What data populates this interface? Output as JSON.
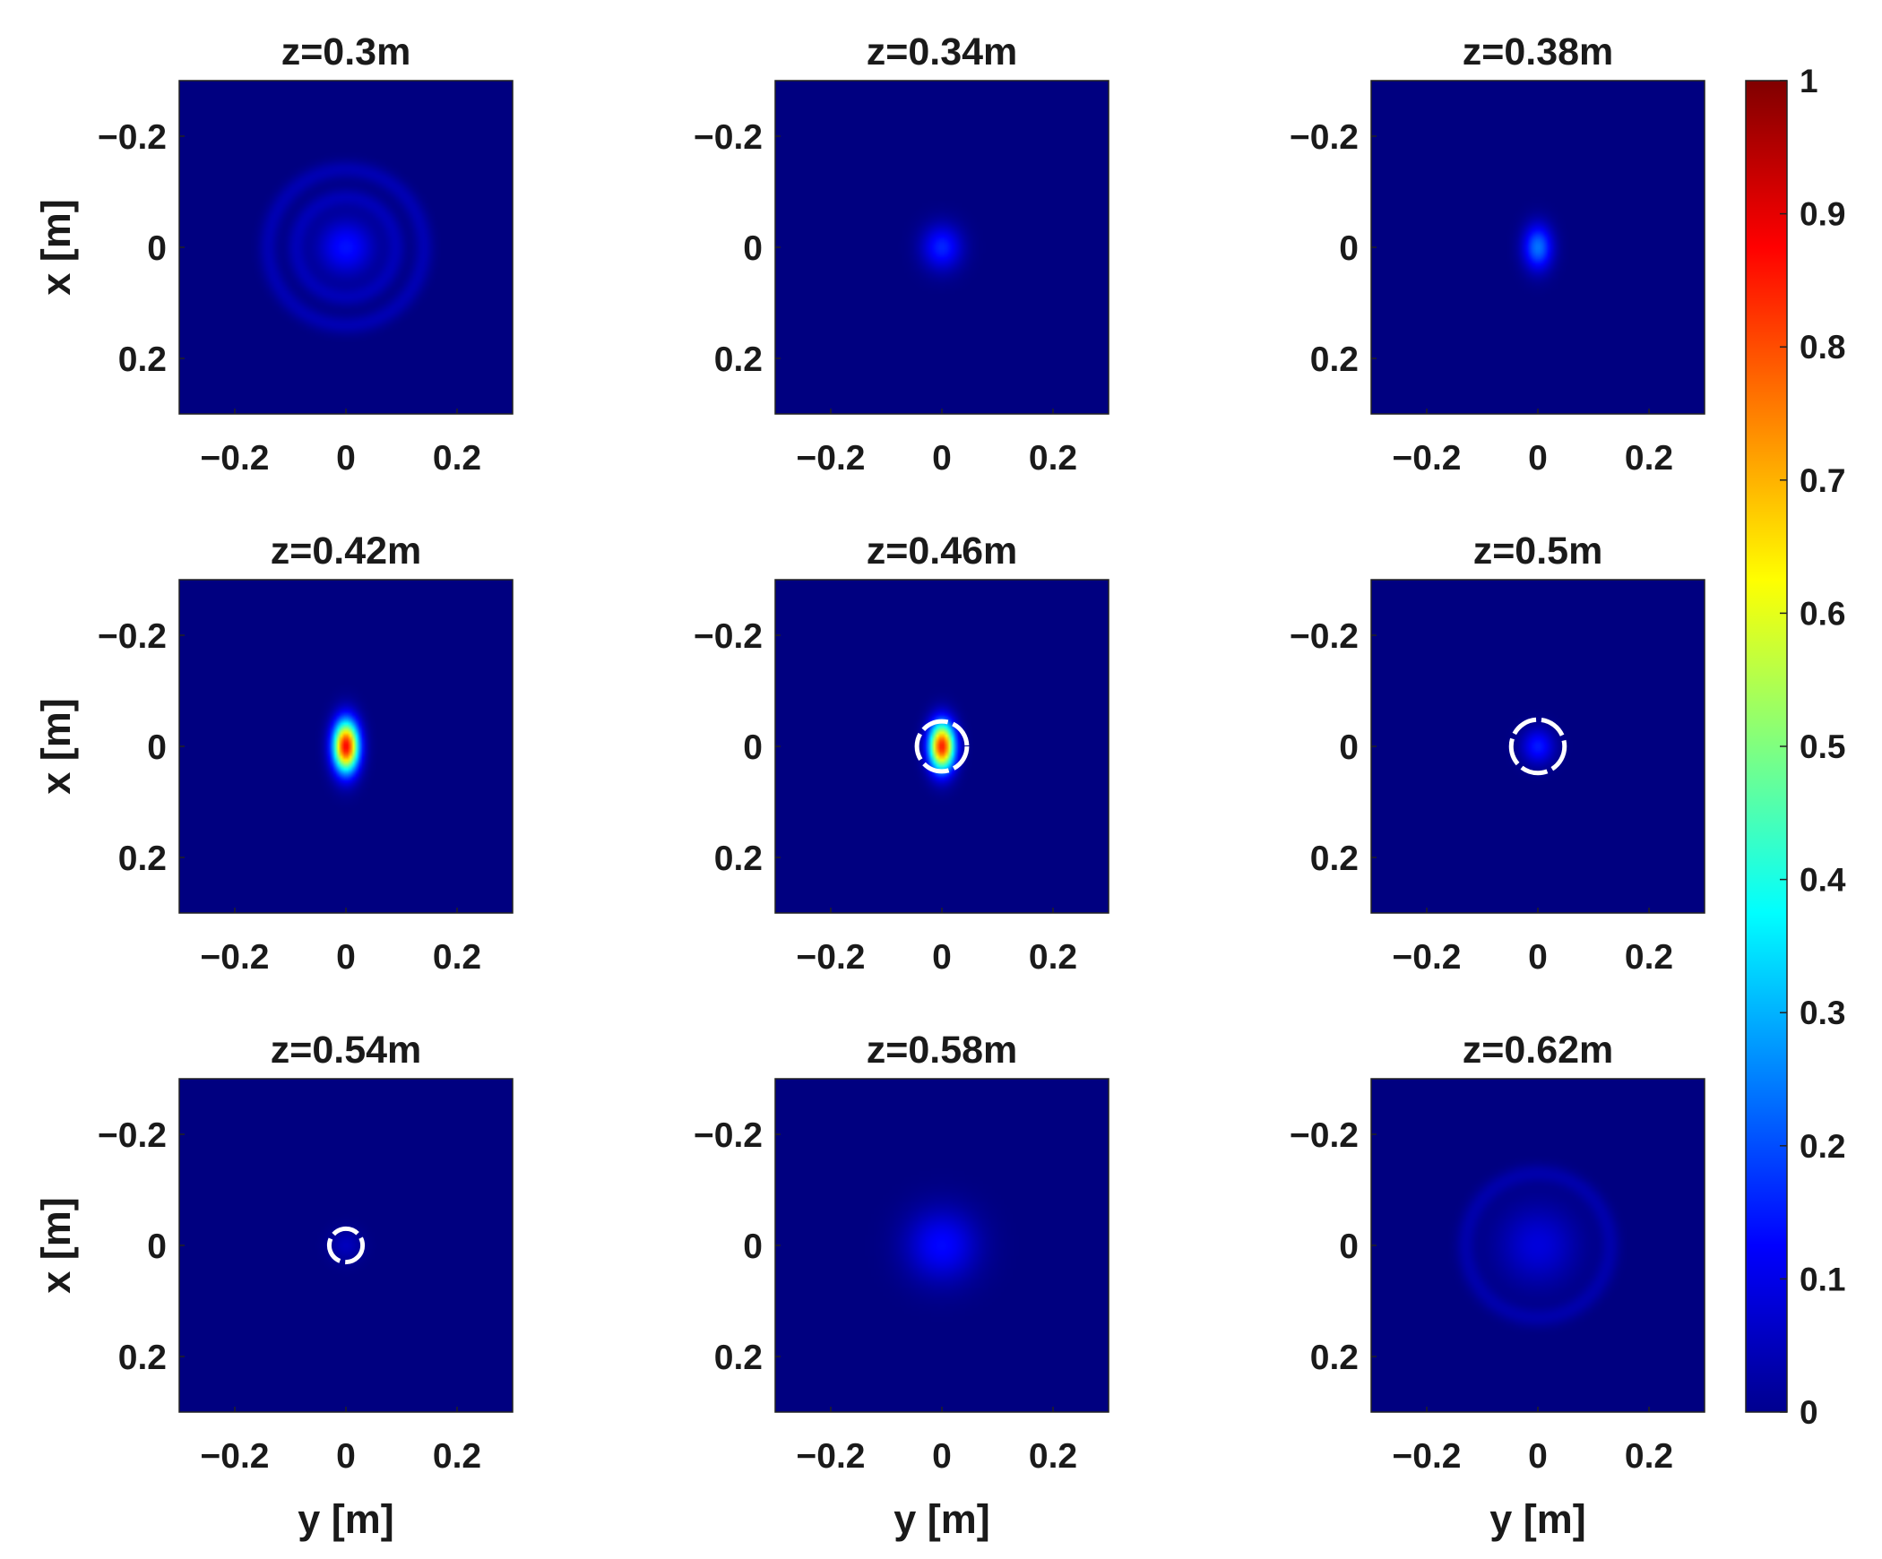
{
  "chart_data": {
    "type": "heatmap",
    "layout": {
      "rows": 3,
      "cols": 3
    },
    "xlabel": "y [m]",
    "ylabel": "x [m]",
    "x_range": [
      -0.3,
      0.3
    ],
    "y_range": [
      -0.3,
      0.3
    ],
    "y_reversed": true,
    "x_ticks": [
      -0.2,
      0,
      0.2
    ],
    "y_ticks": [
      -0.2,
      0,
      0.2
    ],
    "x_tick_labels": [
      "−0.2",
      "0",
      "0.2"
    ],
    "y_tick_labels": [
      "−0.2",
      "0",
      "0.2"
    ],
    "colormap": "jet",
    "color_range": [
      0,
      1
    ],
    "colorbar": {
      "ticks": [
        0,
        0.1,
        0.2,
        0.3,
        0.4,
        0.5,
        0.6,
        0.7,
        0.8,
        0.9,
        1
      ],
      "labels": [
        "0",
        "0.1",
        "0.2",
        "0.3",
        "0.4",
        "0.5",
        "0.6",
        "0.7",
        "0.8",
        "0.9",
        "1"
      ]
    },
    "panels": [
      {
        "title": "z=0.3m",
        "peak": 0.14,
        "spot_width_y": 0.035,
        "spot_width_x": 0.035,
        "rings": [
          0.09,
          0.14
        ],
        "ring_level": 0.05,
        "marker_radius": null
      },
      {
        "title": "z=0.34m",
        "peak": 0.16,
        "spot_width_y": 0.025,
        "spot_width_x": 0.028,
        "rings": [],
        "ring_level": 0,
        "marker_radius": null
      },
      {
        "title": "z=0.38m",
        "peak": 0.24,
        "spot_width_y": 0.018,
        "spot_width_x": 0.028,
        "rings": [],
        "ring_level": 0,
        "marker_radius": null
      },
      {
        "title": "z=0.42m",
        "peak": 0.88,
        "spot_width_y": 0.016,
        "spot_width_x": 0.032,
        "rings": [],
        "ring_level": 0,
        "marker_radius": null
      },
      {
        "title": "z=0.46m",
        "peak": 0.85,
        "spot_width_y": 0.016,
        "spot_width_x": 0.03,
        "rings": [],
        "ring_level": 0,
        "marker_radius": 0.045
      },
      {
        "title": "z=0.5m",
        "peak": 0.15,
        "spot_width_y": 0.02,
        "spot_width_x": 0.022,
        "rings": [],
        "ring_level": 0,
        "marker_radius": 0.048
      },
      {
        "title": "z=0.54m",
        "peak": 0.06,
        "spot_width_y": 0.02,
        "spot_width_x": 0.02,
        "rings": [],
        "ring_level": 0,
        "marker_radius": 0.03
      },
      {
        "title": "z=0.58m",
        "peak": 0.13,
        "spot_width_y": 0.045,
        "spot_width_x": 0.045,
        "rings": [],
        "ring_level": 0,
        "marker_radius": null
      },
      {
        "title": "z=0.62m",
        "peak": 0.09,
        "spot_width_y": 0.05,
        "spot_width_x": 0.05,
        "rings": [
          0.13
        ],
        "ring_level": 0.04,
        "marker_radius": null
      }
    ]
  }
}
